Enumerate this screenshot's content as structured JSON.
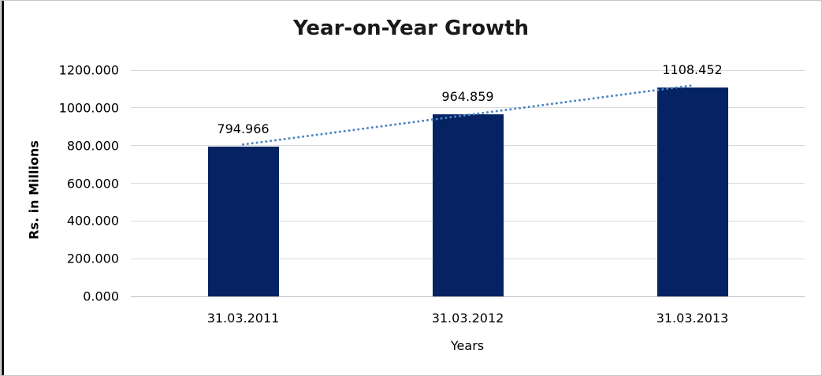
{
  "chart_data": {
    "type": "bar",
    "title": "Year-on-Year Growth",
    "categories": [
      "31.03.2011",
      "31.03.2012",
      "31.03.2013"
    ],
    "values": [
      794.966,
      964.859,
      1108.452
    ],
    "data_labels": [
      "794.966",
      "964.859",
      "1108.452"
    ],
    "xlabel": "Years",
    "ylabel": "Rs. in Millions",
    "ylim": [
      0,
      1200
    ],
    "y_ticks": [
      "0.000",
      "200.000",
      "400.000",
      "600.000",
      "800.000",
      "1000.000",
      "1200.000"
    ],
    "grid": "horizontal-only",
    "legend": "none",
    "trendline": {
      "type": "linear-dotted",
      "color": "#4e86c6"
    },
    "colors": {
      "bar": "#052363",
      "gridline": "#d9d9d9",
      "axis_baseline": "#bfbfbf",
      "title_text": "#1a1a1a",
      "label_text": "#000000",
      "frame_border": "#c6c6c6",
      "left_edge": "#0d0d0d"
    }
  }
}
